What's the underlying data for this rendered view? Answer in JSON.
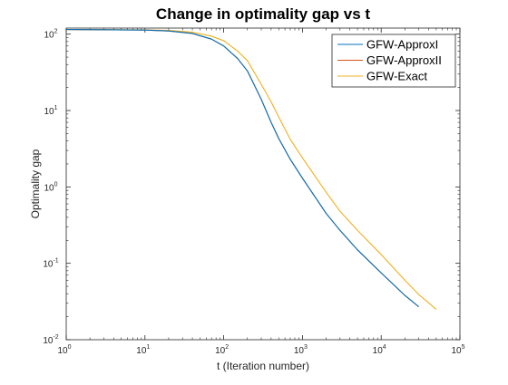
{
  "chart_data": {
    "type": "line",
    "title": "Change in optimality gap vs t",
    "xlabel": "t (Iteration number)",
    "ylabel": "Optimality gap",
    "xscale": "log",
    "yscale": "log",
    "xlim": [
      1,
      100000
    ],
    "ylim": [
      0.01,
      120
    ],
    "x_ticks": [
      {
        "value": 1,
        "base": "10",
        "exp": "0"
      },
      {
        "value": 10,
        "base": "10",
        "exp": "1"
      },
      {
        "value": 100,
        "base": "10",
        "exp": "2"
      },
      {
        "value": 1000,
        "base": "10",
        "exp": "3"
      },
      {
        "value": 10000,
        "base": "10",
        "exp": "4"
      },
      {
        "value": 100000,
        "base": "10",
        "exp": "5"
      }
    ],
    "y_ticks": [
      {
        "value": 0.01,
        "base": "10",
        "exp": "-2"
      },
      {
        "value": 0.1,
        "base": "10",
        "exp": "-1"
      },
      {
        "value": 1,
        "base": "10",
        "exp": "0"
      },
      {
        "value": 10,
        "base": "10",
        "exp": "1"
      },
      {
        "value": 100,
        "base": "10",
        "exp": "2"
      }
    ],
    "grid": false,
    "legend_position": "top-right",
    "series": [
      {
        "name": "GFW-ApproxI",
        "color": "#0072BD",
        "points": [
          [
            1,
            115
          ],
          [
            10,
            113
          ],
          [
            20,
            110
          ],
          [
            40,
            102
          ],
          [
            70,
            86
          ],
          [
            100,
            70
          ],
          [
            150,
            48
          ],
          [
            200,
            33
          ],
          [
            300,
            14
          ],
          [
            400,
            7
          ],
          [
            500,
            4.3
          ],
          [
            700,
            2.3
          ],
          [
            1000,
            1.3
          ],
          [
            2000,
            0.45
          ],
          [
            3000,
            0.27
          ],
          [
            5000,
            0.15
          ],
          [
            10000,
            0.075
          ],
          [
            20000,
            0.038
          ],
          [
            30000,
            0.027
          ]
        ]
      },
      {
        "name": "GFW-ApproxII",
        "color": "#D95319",
        "points": [
          [
            1,
            115
          ],
          [
            10,
            113
          ],
          [
            20,
            110
          ],
          [
            40,
            102
          ],
          [
            70,
            86
          ],
          [
            100,
            70
          ],
          [
            150,
            48
          ],
          [
            200,
            33
          ],
          [
            300,
            14
          ],
          [
            400,
            7
          ],
          [
            500,
            4.3
          ],
          [
            700,
            2.3
          ],
          [
            1000,
            1.3
          ],
          [
            2000,
            0.45
          ],
          [
            3000,
            0.27
          ],
          [
            5000,
            0.15
          ],
          [
            10000,
            0.075
          ],
          [
            20000,
            0.038
          ],
          [
            30000,
            0.027
          ]
        ]
      },
      {
        "name": "GFW-Exact",
        "color": "#EDB120",
        "points": [
          [
            1,
            115
          ],
          [
            10,
            114
          ],
          [
            20,
            112
          ],
          [
            40,
            106
          ],
          [
            70,
            94
          ],
          [
            100,
            82
          ],
          [
            150,
            60
          ],
          [
            200,
            45
          ],
          [
            300,
            22
          ],
          [
            400,
            13
          ],
          [
            500,
            8.2
          ],
          [
            700,
            4.2
          ],
          [
            1000,
            2.4
          ],
          [
            2000,
            0.85
          ],
          [
            3000,
            0.48
          ],
          [
            5000,
            0.27
          ],
          [
            10000,
            0.13
          ],
          [
            20000,
            0.06
          ],
          [
            30000,
            0.039
          ],
          [
            50000,
            0.025
          ]
        ]
      }
    ]
  }
}
